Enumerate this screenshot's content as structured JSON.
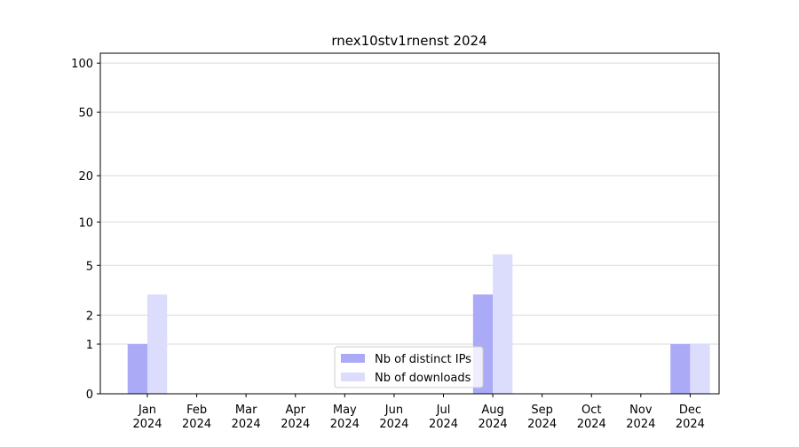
{
  "chart_data": {
    "type": "bar",
    "title": "rnex10stv1rnenst 2024",
    "categories": [
      "Jan 2024",
      "Feb 2024",
      "Mar 2024",
      "Apr 2024",
      "May 2024",
      "Jun 2024",
      "Jul 2024",
      "Aug 2024",
      "Sep 2024",
      "Oct 2024",
      "Nov 2024",
      "Dec 2024"
    ],
    "series": [
      {
        "name": "Nb of distinct IPs",
        "color": "#aaaaf7",
        "values": [
          1,
          0,
          0,
          0,
          0,
          0,
          0,
          3,
          0,
          0,
          0,
          1
        ]
      },
      {
        "name": "Nb of downloads",
        "color": "#dcdcfc",
        "values": [
          3,
          0,
          0,
          0,
          0,
          0,
          0,
          6,
          0,
          0,
          0,
          1
        ]
      }
    ],
    "yscale": "log1p",
    "ylim": [
      0,
      115
    ],
    "yticks": [
      0,
      1,
      2,
      5,
      10,
      20,
      50,
      100
    ],
    "grid": true,
    "legend": "lower center"
  }
}
